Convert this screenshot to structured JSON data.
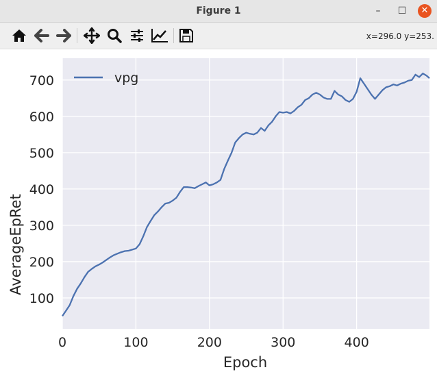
{
  "window": {
    "title": "Figure 1"
  },
  "toolbar": {
    "coords": "x=296.0 y=253.",
    "tools": [
      "home-icon",
      "back-icon",
      "forward-icon",
      "pan-icon",
      "zoom-icon",
      "configure-icon",
      "edit-axis-icon",
      "save-icon"
    ]
  },
  "colors": {
    "plot_background": "#eaeaf2",
    "grid": "#ffffff",
    "line": "#4c72b0",
    "close_button": "#e95420"
  },
  "chart_data": {
    "type": "line",
    "xlabel": "Epoch",
    "ylabel": "AverageEpRet",
    "xlim": [
      0,
      499
    ],
    "ylim": [
      15,
      760
    ],
    "xticks": [
      0,
      100,
      200,
      300,
      400
    ],
    "yticks": [
      100,
      200,
      300,
      400,
      500,
      600,
      700
    ],
    "grid": true,
    "legend_position": "top-left",
    "series": [
      {
        "name": "vpg",
        "x": [
          0,
          5,
          10,
          15,
          20,
          25,
          30,
          35,
          40,
          45,
          50,
          55,
          60,
          65,
          70,
          75,
          80,
          85,
          90,
          95,
          100,
          105,
          110,
          115,
          120,
          125,
          130,
          135,
          140,
          145,
          150,
          155,
          160,
          165,
          170,
          175,
          180,
          185,
          190,
          195,
          200,
          205,
          210,
          215,
          220,
          225,
          230,
          235,
          240,
          245,
          250,
          255,
          260,
          265,
          270,
          275,
          280,
          285,
          290,
          295,
          300,
          305,
          310,
          315,
          320,
          325,
          330,
          335,
          340,
          345,
          350,
          355,
          360,
          365,
          370,
          375,
          380,
          385,
          390,
          395,
          400,
          405,
          410,
          415,
          420,
          425,
          430,
          435,
          440,
          445,
          450,
          455,
          460,
          465,
          470,
          475,
          480,
          485,
          490,
          495,
          499
        ],
        "y": [
          50,
          65,
          80,
          105,
          125,
          140,
          157,
          172,
          180,
          187,
          192,
          198,
          205,
          212,
          218,
          222,
          226,
          229,
          230,
          233,
          236,
          248,
          270,
          295,
          312,
          328,
          338,
          350,
          360,
          362,
          368,
          376,
          392,
          405,
          405,
          404,
          402,
          408,
          413,
          418,
          410,
          413,
          418,
          425,
          455,
          478,
          500,
          528,
          540,
          550,
          555,
          552,
          550,
          555,
          568,
          560,
          575,
          585,
          600,
          612,
          610,
          612,
          608,
          615,
          625,
          632,
          645,
          650,
          660,
          665,
          660,
          652,
          648,
          648,
          670,
          660,
          655,
          645,
          640,
          648,
          668,
          705,
          690,
          675,
          660,
          648,
          660,
          672,
          680,
          683,
          688,
          685,
          690,
          693,
          698,
          700,
          715,
          708,
          718,
          712,
          705
        ]
      }
    ]
  }
}
